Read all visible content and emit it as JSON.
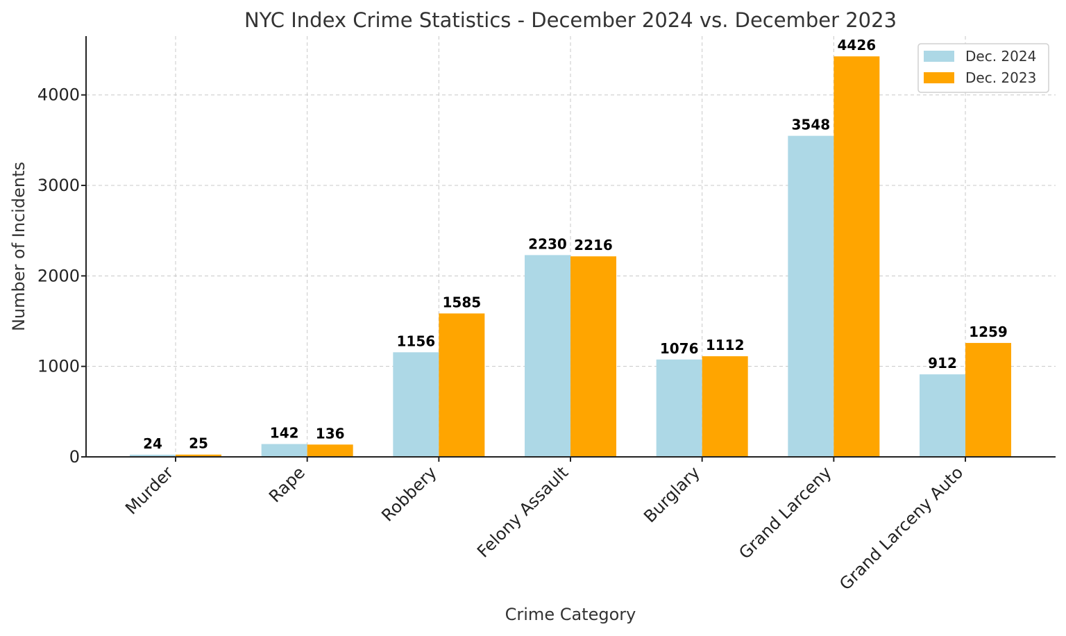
{
  "chart_data": {
    "type": "bar",
    "title": "NYC Index Crime Statistics - December 2024 vs. December 2023",
    "xlabel": "Crime Category",
    "ylabel": "Number of Incidents",
    "categories": [
      "Murder",
      "Rape",
      "Robbery",
      "Felony Assault",
      "Burglary",
      "Grand Larceny",
      "Grand Larceny Auto"
    ],
    "series": [
      {
        "name": "Dec. 2024",
        "color": "#add8e6",
        "values": [
          24,
          142,
          1156,
          2230,
          1076,
          3548,
          912
        ]
      },
      {
        "name": "Dec. 2023",
        "color": "#ffa500",
        "values": [
          25,
          136,
          1585,
          2216,
          1112,
          4426,
          1259
        ]
      }
    ],
    "ylim": [
      0,
      4650
    ],
    "yticks": [
      0,
      1000,
      2000,
      3000,
      4000
    ],
    "grid": true,
    "legend_position": "top-right"
  }
}
